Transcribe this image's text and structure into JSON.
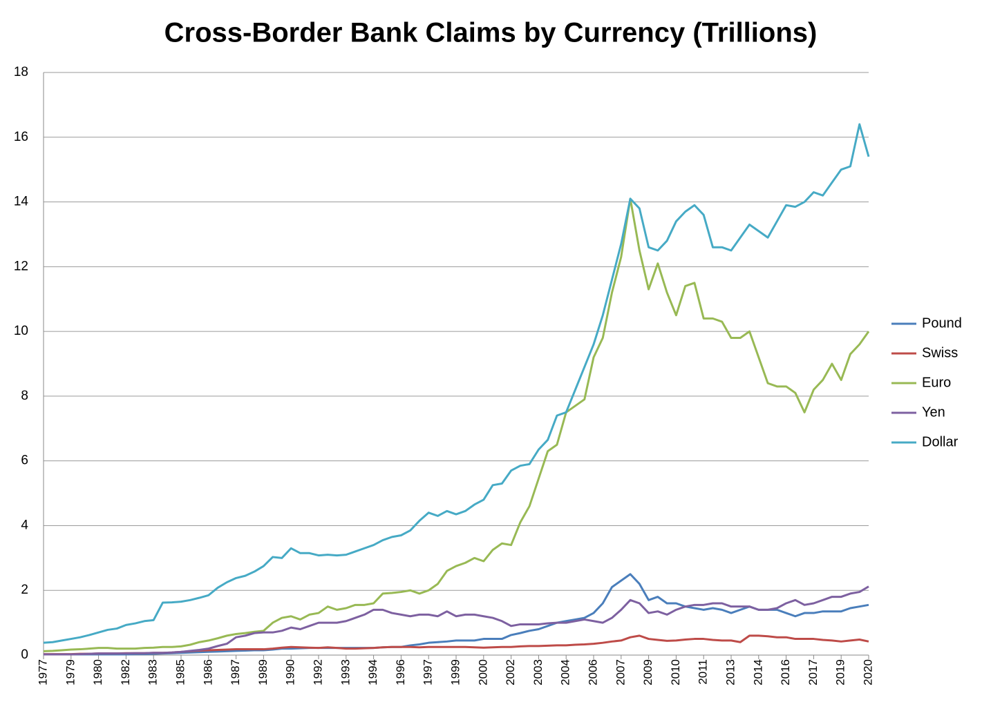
{
  "chart_data": {
    "type": "line",
    "title": "Cross-Border Bank Claims by Currency (Trillions)",
    "categories": [
      "1977",
      null,
      null,
      "1979",
      null,
      null,
      "1980",
      null,
      null,
      "1982",
      null,
      null,
      "1983",
      null,
      null,
      "1985",
      null,
      null,
      "1986",
      null,
      null,
      "1987",
      null,
      null,
      "1989",
      null,
      null,
      "1990",
      null,
      null,
      "1992",
      null,
      null,
      "1993",
      null,
      null,
      "1994",
      null,
      null,
      "1996",
      null,
      null,
      "1997",
      null,
      null,
      "1999",
      null,
      null,
      "2000",
      null,
      null,
      "2002",
      null,
      null,
      "2003",
      null,
      null,
      "2004",
      null,
      null,
      "2006",
      null,
      null,
      "2007",
      null,
      null,
      "2009",
      null,
      null,
      "2010",
      null,
      null,
      "2011",
      null,
      null,
      "2013",
      null,
      null,
      "2014",
      null,
      null,
      "2016",
      null,
      null,
      "2017",
      null,
      null,
      "2019",
      null,
      null,
      "2020"
    ],
    "series": [
      {
        "name": "Pound",
        "color": "#4a7ebb",
        "values": [
          0.02,
          0.02,
          0.02,
          0.02,
          0.02,
          0.02,
          0.02,
          0.02,
          0.02,
          0.02,
          0.03,
          0.03,
          0.04,
          0.05,
          0.06,
          0.07,
          0.08,
          0.09,
          0.1,
          0.11,
          0.12,
          0.13,
          0.14,
          0.15,
          0.15,
          0.17,
          0.2,
          0.2,
          0.21,
          0.22,
          0.22,
          0.22,
          0.22,
          0.22,
          0.22,
          0.22,
          0.22,
          0.24,
          0.25,
          0.25,
          0.3,
          0.33,
          0.38,
          0.4,
          0.42,
          0.45,
          0.45,
          0.45,
          0.5,
          0.5,
          0.5,
          0.62,
          0.68,
          0.75,
          0.8,
          0.9,
          1.0,
          1.05,
          1.1,
          1.15,
          1.3,
          1.6,
          2.1,
          2.3,
          2.5,
          2.2,
          1.7,
          1.8,
          1.6,
          1.6,
          1.5,
          1.45,
          1.4,
          1.45,
          1.4,
          1.3,
          1.4,
          1.5,
          1.4,
          1.4,
          1.4,
          1.3,
          1.2,
          1.3,
          1.3,
          1.35,
          1.35,
          1.35,
          1.45,
          1.5,
          1.55
        ]
      },
      {
        "name": "Swiss",
        "color": "#be4b48",
        "values": [
          0.03,
          0.03,
          0.03,
          0.03,
          0.04,
          0.04,
          0.05,
          0.05,
          0.05,
          0.06,
          0.06,
          0.06,
          0.07,
          0.07,
          0.08,
          0.1,
          0.12,
          0.14,
          0.15,
          0.16,
          0.17,
          0.18,
          0.18,
          0.18,
          0.18,
          0.2,
          0.23,
          0.25,
          0.24,
          0.23,
          0.22,
          0.24,
          0.22,
          0.2,
          0.2,
          0.21,
          0.22,
          0.24,
          0.25,
          0.25,
          0.25,
          0.24,
          0.25,
          0.25,
          0.25,
          0.25,
          0.25,
          0.24,
          0.23,
          0.24,
          0.25,
          0.25,
          0.27,
          0.28,
          0.28,
          0.29,
          0.3,
          0.3,
          0.32,
          0.33,
          0.35,
          0.38,
          0.42,
          0.45,
          0.55,
          0.6,
          0.5,
          0.47,
          0.44,
          0.45,
          0.48,
          0.5,
          0.5,
          0.47,
          0.45,
          0.45,
          0.4,
          0.6,
          0.6,
          0.58,
          0.55,
          0.55,
          0.5,
          0.5,
          0.5,
          0.47,
          0.45,
          0.42,
          0.45,
          0.48,
          0.42
        ]
      },
      {
        "name": "Euro",
        "color": "#98b954",
        "values": [
          0.12,
          0.13,
          0.15,
          0.17,
          0.18,
          0.2,
          0.22,
          0.22,
          0.2,
          0.2,
          0.2,
          0.22,
          0.23,
          0.25,
          0.25,
          0.27,
          0.32,
          0.4,
          0.45,
          0.52,
          0.6,
          0.65,
          0.68,
          0.72,
          0.75,
          1.0,
          1.15,
          1.2,
          1.1,
          1.25,
          1.3,
          1.5,
          1.4,
          1.45,
          1.55,
          1.55,
          1.6,
          1.9,
          1.92,
          1.95,
          2.0,
          1.9,
          2.0,
          2.2,
          2.6,
          2.75,
          2.85,
          3.0,
          2.9,
          3.25,
          3.45,
          3.4,
          4.1,
          4.6,
          5.45,
          6.3,
          6.5,
          7.5,
          7.7,
          7.9,
          9.2,
          9.8,
          11.2,
          12.3,
          14.1,
          12.5,
          11.3,
          12.1,
          11.2,
          10.5,
          11.4,
          11.5,
          10.4,
          10.4,
          10.3,
          9.8,
          9.8,
          10.0,
          9.2,
          8.4,
          8.3,
          8.3,
          8.1,
          7.5,
          8.2,
          8.5,
          9.0,
          8.5,
          9.3,
          9.6,
          10.0
        ]
      },
      {
        "name": "Yen",
        "color": "#7d60a0",
        "values": [
          0.02,
          0.02,
          0.02,
          0.02,
          0.03,
          0.04,
          0.05,
          0.05,
          0.05,
          0.05,
          0.06,
          0.06,
          0.07,
          0.07,
          0.08,
          0.1,
          0.13,
          0.16,
          0.2,
          0.28,
          0.35,
          0.55,
          0.6,
          0.68,
          0.7,
          0.7,
          0.75,
          0.85,
          0.8,
          0.9,
          1.0,
          1.0,
          1.0,
          1.05,
          1.15,
          1.25,
          1.4,
          1.4,
          1.3,
          1.25,
          1.2,
          1.25,
          1.25,
          1.2,
          1.35,
          1.2,
          1.25,
          1.25,
          1.2,
          1.15,
          1.05,
          0.9,
          0.95,
          0.95,
          0.95,
          0.98,
          1.0,
          1.0,
          1.05,
          1.1,
          1.05,
          1.0,
          1.15,
          1.4,
          1.7,
          1.6,
          1.3,
          1.35,
          1.25,
          1.4,
          1.5,
          1.55,
          1.55,
          1.6,
          1.6,
          1.5,
          1.5,
          1.5,
          1.4,
          1.4,
          1.45,
          1.6,
          1.7,
          1.55,
          1.6,
          1.7,
          1.8,
          1.8,
          1.9,
          1.95,
          2.12
        ]
      },
      {
        "name": "Dollar",
        "color": "#46aac5",
        "values": [
          0.38,
          0.4,
          0.45,
          0.5,
          0.55,
          0.62,
          0.7,
          0.78,
          0.82,
          0.93,
          0.98,
          1.05,
          1.08,
          1.62,
          1.63,
          1.65,
          1.7,
          1.77,
          1.85,
          2.08,
          2.25,
          2.38,
          2.45,
          2.58,
          2.75,
          3.03,
          3.0,
          3.3,
          3.15,
          3.15,
          3.08,
          3.1,
          3.08,
          3.1,
          3.2,
          3.3,
          3.4,
          3.55,
          3.65,
          3.7,
          3.85,
          4.15,
          4.4,
          4.3,
          4.45,
          4.35,
          4.45,
          4.65,
          4.8,
          5.25,
          5.3,
          5.7,
          5.85,
          5.9,
          6.35,
          6.65,
          7.4,
          7.5,
          8.2,
          8.9,
          9.6,
          10.5,
          11.6,
          12.7,
          14.1,
          13.8,
          12.6,
          12.5,
          12.8,
          13.4,
          13.7,
          13.9,
          13.6,
          12.6,
          12.6,
          12.5,
          12.9,
          13.3,
          13.1,
          12.9,
          13.4,
          13.9,
          13.85,
          14.0,
          14.3,
          14.2,
          14.6,
          15.0,
          15.1,
          16.4,
          15.4
        ]
      }
    ],
    "ylim": [
      0,
      18
    ],
    "yticks": [
      0,
      2,
      4,
      6,
      8,
      10,
      12,
      14,
      16,
      18
    ],
    "grid": true,
    "legend": "right"
  }
}
